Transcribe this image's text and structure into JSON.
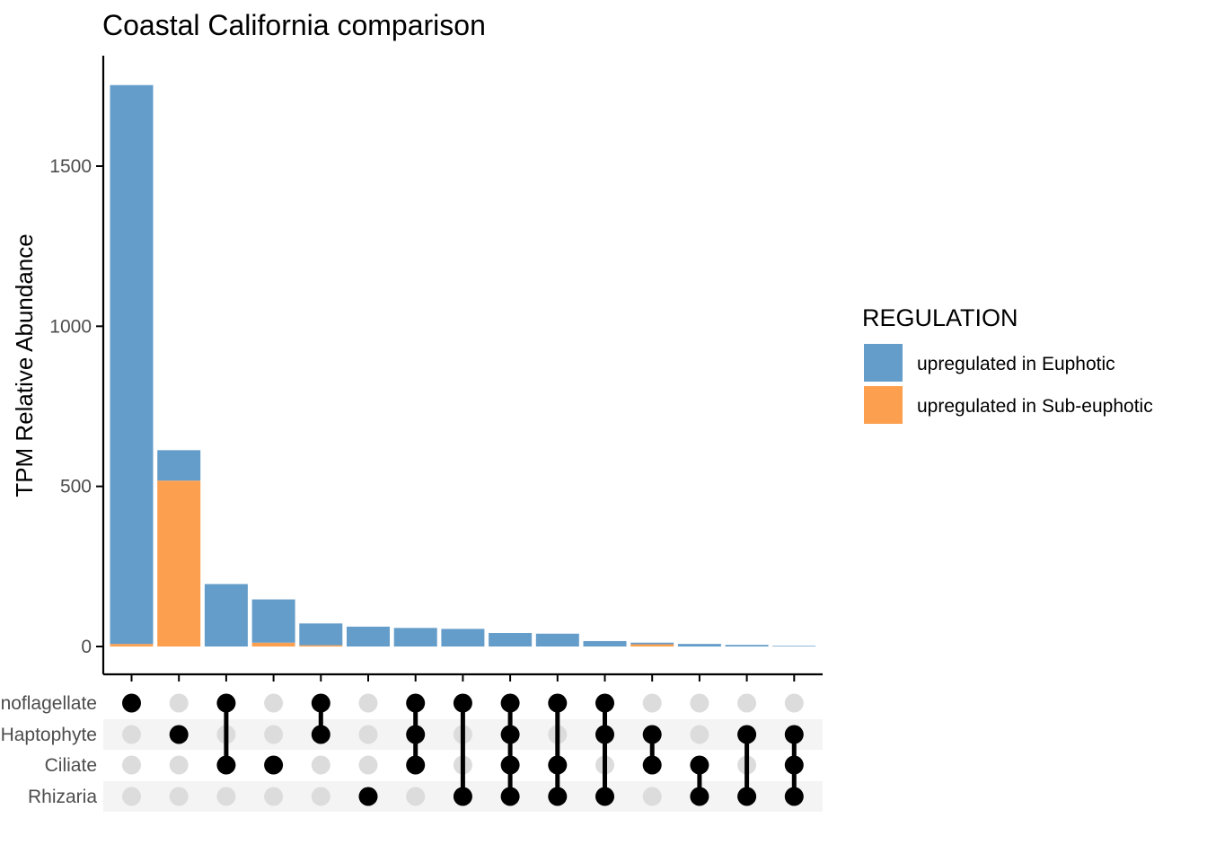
{
  "chart_data": {
    "type": "bar",
    "subtype": "upset-stacked-bar",
    "title": "Coastal California comparison",
    "xlabel": "",
    "ylabel": "TPM Relative Abundance",
    "ylim": [
      -75,
      1770
    ],
    "yticks": [
      0,
      500,
      1000,
      1500
    ],
    "sets": [
      "Dinoflagellate",
      "Haptophyte",
      "Ciliate",
      "Rhizaria"
    ],
    "intersections": [
      [
        "Dinoflagellate"
      ],
      [
        "Haptophyte"
      ],
      [
        "Dinoflagellate",
        "Ciliate"
      ],
      [
        "Ciliate"
      ],
      [
        "Dinoflagellate",
        "Haptophyte"
      ],
      [
        "Rhizaria"
      ],
      [
        "Dinoflagellate",
        "Haptophyte",
        "Ciliate"
      ],
      [
        "Dinoflagellate",
        "Rhizaria"
      ],
      [
        "Dinoflagellate",
        "Haptophyte",
        "Ciliate",
        "Rhizaria"
      ],
      [
        "Dinoflagellate",
        "Ciliate",
        "Rhizaria"
      ],
      [
        "Dinoflagellate",
        "Haptophyte",
        "Rhizaria"
      ],
      [
        "Haptophyte",
        "Ciliate"
      ],
      [
        "Ciliate",
        "Rhizaria"
      ],
      [
        "Haptophyte",
        "Rhizaria"
      ],
      [
        "Haptophyte",
        "Ciliate",
        "Rhizaria"
      ]
    ],
    "series": [
      {
        "name": "upregulated in Euphotic",
        "color": "#659DCA",
        "values": [
          1745,
          95,
          195,
          135,
          68,
          62,
          58,
          55,
          42,
          40,
          17,
          5,
          8,
          5,
          2
        ]
      },
      {
        "name": "upregulated in Sub-euphotic",
        "color": "#FCA04F",
        "values": [
          8,
          518,
          0,
          12,
          4,
          0,
          0,
          0,
          0,
          0,
          0,
          7,
          0,
          0,
          0
        ]
      }
    ],
    "legend": {
      "title": "REGULATION",
      "position": "right"
    },
    "grid": false
  },
  "colors": {
    "dot_active": "#000000",
    "dot_inactive": "#dcdcdc",
    "stripe": "#f4f4f4",
    "axis": "#000000"
  }
}
